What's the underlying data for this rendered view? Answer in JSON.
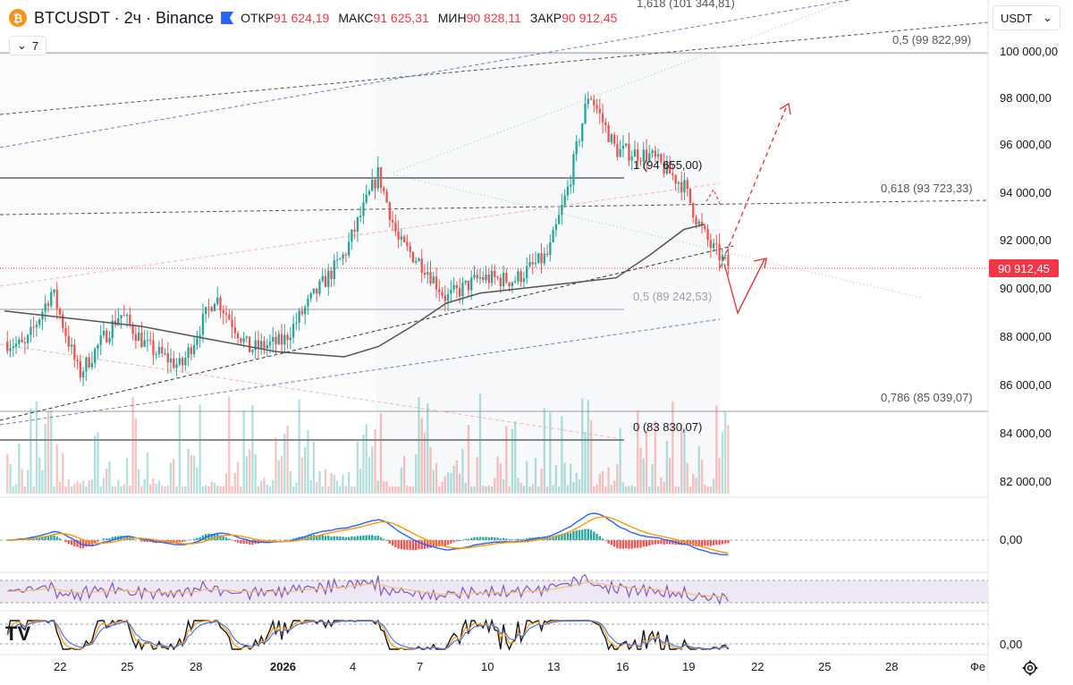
{
  "header": {
    "symbol_icon": "bitcoin-icon",
    "title": "BTCUSDT · 2ч · Binance",
    "ohlc": {
      "open_label": "ОТКР",
      "open_value": "91 624,19",
      "high_label": "МАКС",
      "high_value": "91 625,31",
      "low_label": "МИН",
      "low_value": "90 828,11",
      "close_label": "ЗАКР",
      "close_value": "90 912,45"
    },
    "indicators_count": "7"
  },
  "currency": {
    "value": "USDT"
  },
  "price_axis": {
    "labels": [
      "100 000,00",
      "98 000,00",
      "96 000,00",
      "94 000,00",
      "92 000,00",
      "90 000,00",
      "88 000,00",
      "86 000,00",
      "84 000,00",
      "82 000,00"
    ],
    "current_price": "90 912,45",
    "macd_zero": "0,00",
    "stoch_zero": "0,00"
  },
  "time_axis": {
    "labels": [
      "22",
      "25",
      "28",
      "2026",
      "4",
      "7",
      "10",
      "13",
      "16",
      "19",
      "22",
      "25",
      "28",
      "Фе"
    ]
  },
  "fib_levels": [
    "1,618 (101 344,81)",
    "0,5 (99 822,99)",
    "0,618 (93 723,33)",
    "0,786 (85 039,07)",
    "1 (94 655,00)",
    "0,5 (89 242,53)",
    "0 (83 830,07)"
  ],
  "colors": {
    "up": "#26a69a",
    "down": "#ef5350",
    "accent": "#2962ff",
    "price_tag": "#f23645"
  },
  "chart_data": {
    "type": "candlestick",
    "symbol": "BTCUSDT",
    "interval": "2ч",
    "exchange": "Binance",
    "price_range": [
      81500,
      101500
    ],
    "ma_line": [
      [
        0,
        89300
      ],
      [
        0.1,
        89000
      ],
      [
        0.2,
        88700
      ],
      [
        0.3,
        88200
      ],
      [
        0.4,
        87700
      ],
      [
        0.5,
        87500
      ],
      [
        0.55,
        87900
      ],
      [
        0.6,
        88700
      ],
      [
        0.65,
        89600
      ],
      [
        0.7,
        90000
      ],
      [
        0.8,
        90300
      ],
      [
        0.9,
        90600
      ],
      [
        0.95,
        91500
      ],
      [
        1,
        92500
      ],
      [
        1.03,
        92700
      ]
    ],
    "path": [
      [
        0,
        88100
      ],
      [
        0.03,
        87900
      ],
      [
        0.07,
        90100
      ],
      [
        0.11,
        86800
      ],
      [
        0.17,
        89200
      ],
      [
        0.21,
        87900
      ],
      [
        0.26,
        87100
      ],
      [
        0.31,
        89900
      ],
      [
        0.36,
        87800
      ],
      [
        0.41,
        88100
      ],
      [
        0.45,
        89700
      ],
      [
        0.5,
        91500
      ],
      [
        0.55,
        94700
      ],
      [
        0.58,
        92000
      ],
      [
        0.62,
        91000
      ],
      [
        0.65,
        89800
      ],
      [
        0.7,
        90600
      ],
      [
        0.75,
        90500
      ],
      [
        0.8,
        91500
      ],
      [
        0.83,
        94200
      ],
      [
        0.86,
        97900
      ],
      [
        0.9,
        95600
      ],
      [
        0.95,
        95400
      ],
      [
        1,
        94200
      ],
      [
        1.02,
        92800
      ],
      [
        1.04,
        91800
      ],
      [
        1.065,
        91100
      ]
    ]
  }
}
